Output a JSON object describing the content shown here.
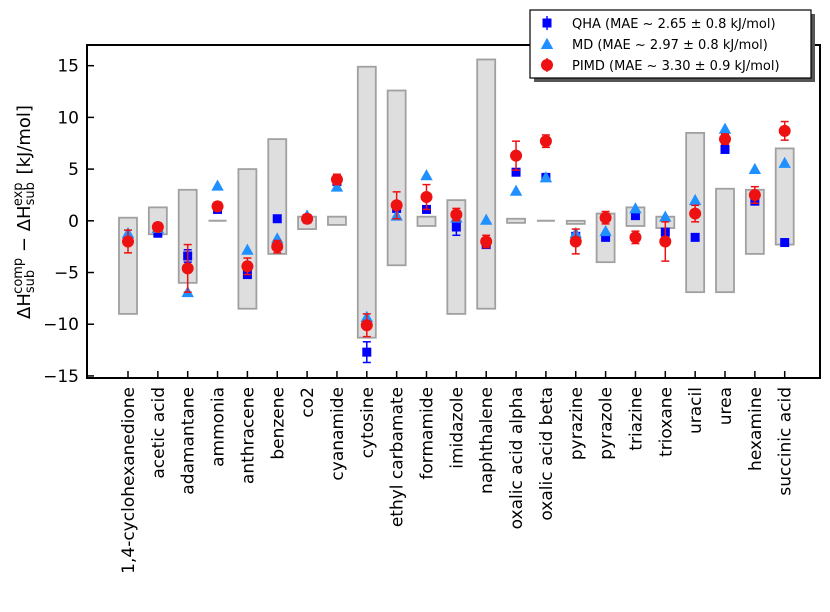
{
  "chart_data": {
    "type": "scatter",
    "title": "",
    "xlabel": "",
    "ylabel": {
      "prefix": "ΔH",
      "sub1": "sub",
      "sup1": "comp",
      "minus": " − ΔH",
      "sub2": "sub",
      "sup2": "exp",
      "units": "[kJ/mol]"
    },
    "ylim": [
      -15.2,
      17
    ],
    "yticks": [
      -15,
      -10,
      -5,
      0,
      5,
      10,
      15
    ],
    "ytick_labels": [
      "−15",
      "−10",
      "−5",
      "0",
      "5",
      "10",
      "15"
    ],
    "categories": [
      "1,4-cyclohexanedione",
      "acetic acid",
      "adamantane",
      "ammonia",
      "anthracene",
      "benzene",
      "co2",
      "cyanamide",
      "cytosine",
      "ethyl carbamate",
      "formamide",
      "imidazole",
      "naphthalene",
      "oxalic acid alpha",
      "oxalic acid beta",
      "pyrazine",
      "pyrazole",
      "triazine",
      "trioxane",
      "uracil",
      "urea",
      "hexamine",
      "succinic acid"
    ],
    "exp_uncertainty_boxes": [
      {
        "low": -9.0,
        "high": 0.3
      },
      {
        "low": -1.3,
        "high": 1.3
      },
      {
        "low": -6.0,
        "high": 3.0
      },
      {
        "low": 0.0,
        "high": 0.0
      },
      {
        "low": -8.5,
        "high": 5.0
      },
      {
        "low": -3.2,
        "high": 7.9
      },
      {
        "low": -0.8,
        "high": 0.4
      },
      {
        "low": -0.4,
        "high": 0.4
      },
      {
        "low": -11.3,
        "high": 14.9
      },
      {
        "low": -4.3,
        "high": 12.6
      },
      {
        "low": -0.5,
        "high": 0.4
      },
      {
        "low": -9.0,
        "high": 2.0
      },
      {
        "low": -8.5,
        "high": 15.6
      },
      {
        "low": -0.2,
        "high": 0.2
      },
      {
        "low": 0.0,
        "high": 0.0
      },
      {
        "low": -0.3,
        "high": 0.0
      },
      {
        "low": -4.0,
        "high": 0.7
      },
      {
        "low": -0.5,
        "high": 1.3
      },
      {
        "low": -0.7,
        "high": 0.4
      },
      {
        "low": -6.9,
        "high": 8.5
      },
      {
        "low": -6.9,
        "high": 3.1
      },
      {
        "low": -3.2,
        "high": 3.0
      },
      {
        "low": -2.3,
        "high": 7.0
      }
    ],
    "series": [
      {
        "name": "QHA",
        "legend_label": "QHA (MAE ~ 2.65 ± 0.8 kJ/mol)",
        "color": "#0000ff",
        "marker": "square",
        "values": [
          -1.8,
          -1.2,
          -3.4,
          1.1,
          -5.2,
          0.2,
          0.2,
          3.8,
          -12.7,
          1.2,
          1.1,
          -0.6,
          -2.3,
          4.7,
          4.2,
          -1.5,
          -1.6,
          0.5,
          -1.1,
          -1.6,
          6.9,
          1.9,
          -2.1
        ],
        "errors": [
          0.4,
          0.3,
          0.6,
          0.2,
          0.3,
          0.2,
          0.2,
          0.2,
          1.0,
          0.3,
          0.3,
          0.8,
          0.3,
          0.3,
          0.3,
          0.3,
          0.3,
          0.2,
          0.3,
          0.3,
          0.2,
          0.2,
          0.2
        ]
      },
      {
        "name": "MD",
        "legend_label": "MD (MAE ~ 2.97 ± 0.8 kJ/mol)",
        "color": "#1e90ff",
        "marker": "triangle",
        "values": [
          -1.2,
          -0.7,
          -6.9,
          3.4,
          -2.8,
          -1.7,
          0.5,
          3.3,
          -9.3,
          0.5,
          4.4,
          0.3,
          0.1,
          2.9,
          4.2,
          -1.2,
          -1.0,
          1.2,
          0.4,
          2.0,
          8.9,
          5.0,
          5.6
        ]
      },
      {
        "name": "PIMD",
        "legend_label": "PIMD (MAE ~ 3.30 ± 0.9 kJ/mol)",
        "color": "#ee1111",
        "marker": "circle",
        "values": [
          -2.0,
          -0.6,
          -4.6,
          1.4,
          -4.4,
          -2.5,
          0.2,
          4.0,
          -10.1,
          1.5,
          2.3,
          0.6,
          -2.0,
          6.3,
          7.7,
          -2.0,
          0.3,
          -1.6,
          -2.0,
          0.7,
          7.9,
          2.5,
          8.7
        ],
        "errors": [
          1.1,
          0.4,
          2.3,
          0.4,
          0.8,
          0.6,
          0.4,
          0.5,
          1.1,
          1.3,
          1.2,
          0.6,
          0.6,
          1.4,
          0.6,
          1.2,
          0.6,
          0.6,
          1.9,
          0.8,
          0.5,
          0.8,
          0.9
        ]
      }
    ],
    "legend_position": "top-right"
  }
}
